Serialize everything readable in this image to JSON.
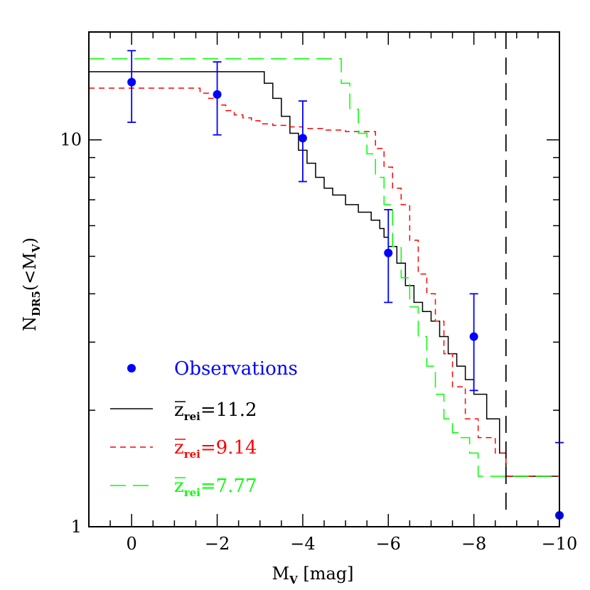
{
  "chart_data": {
    "type": "line",
    "xlabel": {
      "main": "M",
      "sub": "V",
      "rest": " [mag]"
    },
    "ylabel": {
      "main": "N",
      "sub": "DR5",
      "rest": "(<M",
      "sub2": "V",
      "end": ")"
    },
    "xlim": [
      1,
      -10
    ],
    "ylim": [
      1,
      19
    ],
    "yscale": "log",
    "x_ticks": [
      "0",
      "−2",
      "−4",
      "−6",
      "−8",
      "−10"
    ],
    "x_tick_values": [
      0,
      -2,
      -4,
      -6,
      -8,
      -10
    ],
    "y_ticks": [
      "1",
      "10"
    ],
    "y_tick_values": [
      1,
      10
    ],
    "vline": {
      "x": -8.75,
      "style": "long-dash",
      "color": "#000000"
    },
    "legend": {
      "placement": "lower-left",
      "observations_label": "Observations",
      "prefix": "z",
      "subscript": "rei"
    },
    "observations": {
      "name": "Observations",
      "color": "#0000ff",
      "points": [
        {
          "x": 0,
          "y": 14.1,
          "lo": 11.1,
          "hi": 17.0
        },
        {
          "x": -2,
          "y": 13.1,
          "lo": 10.3,
          "hi": 15.9
        },
        {
          "x": -4,
          "y": 10.1,
          "lo": 7.8,
          "hi": 12.6
        },
        {
          "x": -6,
          "y": 5.1,
          "lo": 3.8,
          "hi": 6.6
        },
        {
          "x": -8,
          "y": 3.1,
          "lo": 2.25,
          "hi": 4.0
        },
        {
          "x": -10,
          "y": 1.07,
          "lo": 0.65,
          "hi": 1.65
        }
      ]
    },
    "series": [
      {
        "name": "=11.2",
        "color": "#000000",
        "dash": "none",
        "x": [
          1,
          -2.9,
          -3.1,
          -3.3,
          -3.5,
          -3.7,
          -3.9,
          -4.1,
          -4.3,
          -4.5,
          -4.7,
          -5.0,
          -5.3,
          -5.6,
          -5.8,
          -5.9,
          -6.0,
          -6.2,
          -6.4,
          -6.6,
          -6.8,
          -7.0,
          -7.2,
          -7.4,
          -7.6,
          -7.8,
          -8.0,
          -8.3,
          -8.6,
          -8.75,
          -10
        ],
        "y": [
          15.0,
          15.0,
          14.0,
          12.8,
          11.5,
          10.4,
          9.4,
          8.7,
          8.0,
          7.5,
          7.2,
          6.8,
          6.5,
          6.2,
          5.9,
          5.6,
          5.3,
          4.8,
          4.2,
          3.8,
          3.6,
          3.4,
          3.1,
          2.8,
          2.6,
          2.4,
          2.2,
          1.9,
          1.55,
          1.35,
          1.35
        ]
      },
      {
        "name": "=9.14",
        "color": "#ff0000",
        "dash": "8 6",
        "x": [
          1,
          -1.4,
          -1.6,
          -1.8,
          -2.0,
          -2.2,
          -2.4,
          -2.6,
          -2.8,
          -3.0,
          -3.3,
          -3.6,
          -4.0,
          -4.5,
          -5.0,
          -5.5,
          -5.7,
          -5.9,
          -6.1,
          -6.3,
          -6.5,
          -6.7,
          -6.9,
          -7.1,
          -7.3,
          -7.5,
          -7.8,
          -8.1,
          -8.5,
          -8.75,
          -10
        ],
        "y": [
          13.6,
          13.6,
          13.2,
          12.8,
          12.3,
          11.9,
          11.6,
          11.4,
          11.2,
          11.0,
          10.9,
          10.8,
          10.7,
          10.6,
          10.5,
          10.5,
          9.5,
          8.5,
          7.5,
          6.8,
          5.5,
          4.5,
          4.0,
          3.4,
          2.8,
          2.3,
          1.9,
          1.7,
          1.55,
          1.35,
          1.35
        ]
      },
      {
        "name": "=7.77",
        "color": "#00ff00",
        "dash": "22 10",
        "x": [
          1,
          -4.7,
          -4.9,
          -5.1,
          -5.3,
          -5.5,
          -5.7,
          -5.9,
          -6.1,
          -6.3,
          -6.5,
          -6.7,
          -6.9,
          -7.1,
          -7.3,
          -7.5,
          -7.7,
          -7.9,
          -8.1,
          -10
        ],
        "y": [
          16.2,
          16.2,
          14.0,
          12.0,
          10.4,
          9.2,
          8.0,
          6.8,
          5.3,
          4.4,
          3.7,
          3.1,
          2.6,
          2.2,
          1.9,
          1.75,
          1.7,
          1.55,
          1.35,
          1.35
        ]
      }
    ]
  }
}
